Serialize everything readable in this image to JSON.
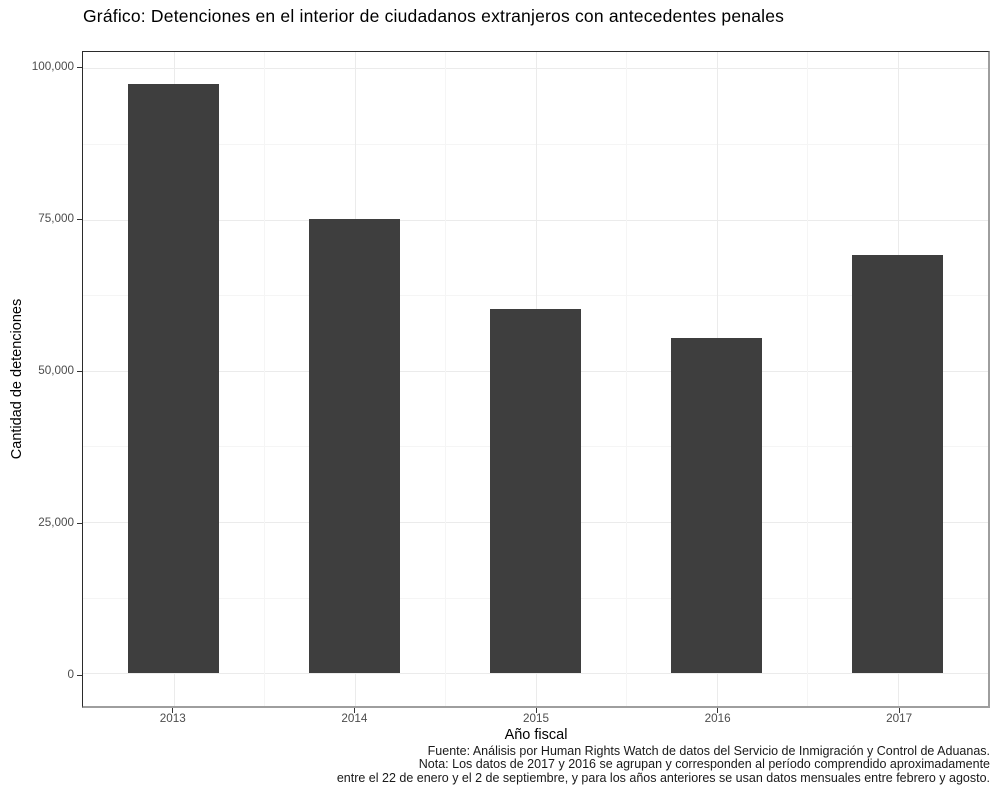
{
  "title": "Gráfico: Detenciones en el interior de ciudadanos extranjeros con antecedentes penales",
  "chart_data": {
    "type": "bar",
    "title": "Gráfico: Detenciones en el interior de ciudadanos extranjeros con antecedentes penales",
    "categories": [
      "2013",
      "2014",
      "2015",
      "2016",
      "2017"
    ],
    "values": [
      97400,
      75100,
      60200,
      55400,
      69200
    ],
    "xlabel": "Año fiscal",
    "ylabel": "Cantidad de detenciones",
    "ylim": [
      0,
      100000
    ],
    "y_render_range": [
      -5400,
      102700
    ],
    "y_ticks": [
      0,
      25000,
      50000,
      75000,
      100000
    ],
    "y_tick_labels": [
      "0",
      "25,000",
      "50,000",
      "75,000",
      "100,000"
    ],
    "y_minor_ticks": [
      12500,
      37500,
      62500,
      87500
    ],
    "grid": "major+minor",
    "legend": "none",
    "bar_width_fraction": 0.5
  },
  "caption": {
    "lines": [
      "Fuente: Análisis por Human Rights Watch de datos del Servicio de Inmigración y Control de Aduanas.",
      "Nota: Los datos de 2017 y 2016 se agrupan y corresponden al período comprendido aproximadamente",
      "entre el 22 de enero y el 2 de septiembre, y para los años anteriores se usan datos mensuales entre febrero y agosto."
    ]
  },
  "colors": {
    "bar": "#3e3e3e",
    "grid_major": "#ebebeb",
    "grid_minor": "#f5f5f5",
    "axis_text": "#4d4d4d",
    "tick_mark": "#333333",
    "panel_border_dark": "#2b2b2b",
    "panel_border_light": "#9e9e9e",
    "background": "#ffffff"
  }
}
